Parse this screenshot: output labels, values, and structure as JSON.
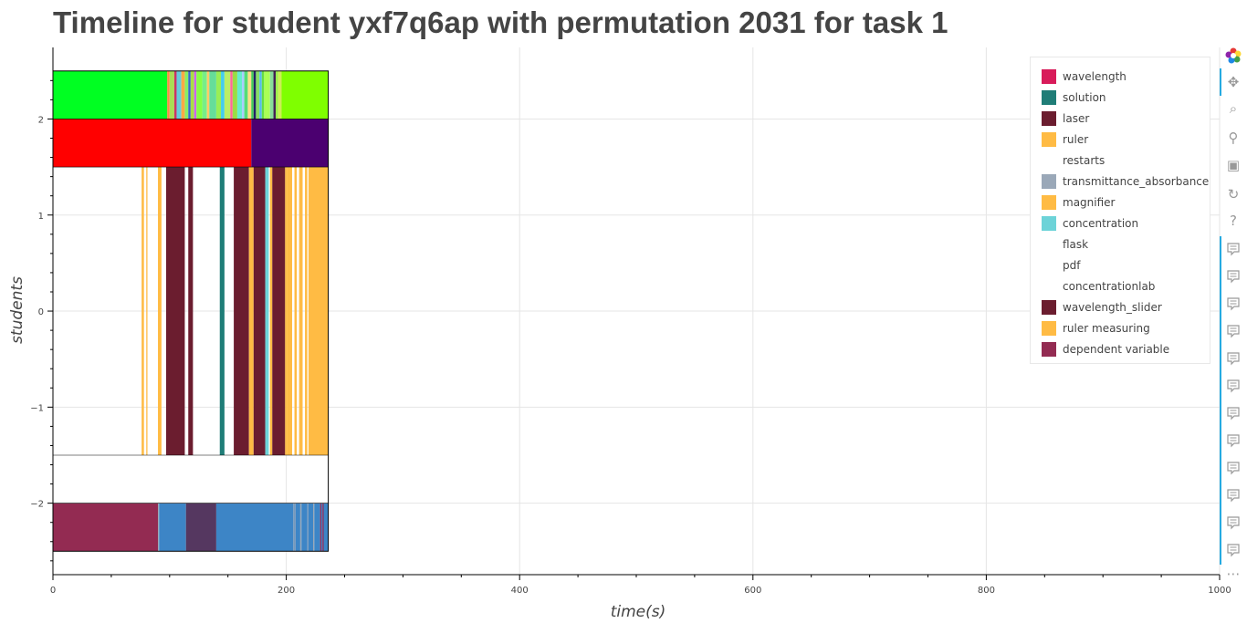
{
  "title": "Timeline for student yxf7q6ap with permutation 2031 for task 1",
  "chart_data": {
    "type": "timeline",
    "title": "Timeline for student yxf7q6ap with permutation 2031 for task 1",
    "xlabel": "time(s)",
    "ylabel": "students",
    "xlim": [
      0,
      1000
    ],
    "ylim": [
      -2.75,
      2.6
    ],
    "x_ticks": [
      0,
      200,
      400,
      600,
      800,
      1000
    ],
    "y_ticks": [
      -2,
      -1,
      0,
      1,
      2
    ],
    "y_tick_labels": [
      "−2",
      "−1",
      "0",
      "1",
      "2"
    ],
    "grid": true,
    "legend_position": "top-right",
    "legend": [
      {
        "label": "wavelength",
        "color": "#d81b5a"
      },
      {
        "label": "solution",
        "color": "#1f7d77"
      },
      {
        "label": "laser",
        "color": "#6b1d2f"
      },
      {
        "label": "ruler",
        "color": "#ffbb44"
      },
      {
        "label": "restarts",
        "color": "#ffffff"
      },
      {
        "label": "transmittance_absorbance",
        "color": "#9aa8b8"
      },
      {
        "label": "magnifier",
        "color": "#ffbb44"
      },
      {
        "label": "concentration",
        "color": "#6dd3d8"
      },
      {
        "label": "flask",
        "color": "#ffffff"
      },
      {
        "label": "pdf",
        "color": "#ffffff"
      },
      {
        "label": "concentrationlab",
        "color": "#ffffff"
      },
      {
        "label": "wavelength_slider",
        "color": "#6b1d2f"
      },
      {
        "label": "ruler measuring",
        "color": "#ffbb44"
      },
      {
        "label": "dependent variable",
        "color": "#932b52"
      }
    ],
    "rows": [
      {
        "y_range": [
          2.0,
          2.5
        ],
        "segments": [
          {
            "start": 0,
            "end": 98,
            "color": "#00ff22"
          },
          {
            "start": 98,
            "end": 100,
            "color": "#ff8844"
          },
          {
            "start": 100,
            "end": 104,
            "color": "#aadd55"
          },
          {
            "start": 104,
            "end": 106,
            "color": "#cc3366"
          },
          {
            "start": 106,
            "end": 110,
            "color": "#66ccdd"
          },
          {
            "start": 110,
            "end": 113,
            "color": "#ffaa44"
          },
          {
            "start": 113,
            "end": 116,
            "color": "#88ee66"
          },
          {
            "start": 116,
            "end": 118,
            "color": "#3366cc"
          },
          {
            "start": 118,
            "end": 121,
            "color": "#aadd44"
          },
          {
            "start": 121,
            "end": 123,
            "color": "#cc66ee"
          },
          {
            "start": 123,
            "end": 128,
            "color": "#88ff44"
          },
          {
            "start": 128,
            "end": 132,
            "color": "#77ee88"
          },
          {
            "start": 132,
            "end": 134,
            "color": "#ffcc66"
          },
          {
            "start": 134,
            "end": 140,
            "color": "#66dd99"
          },
          {
            "start": 140,
            "end": 144,
            "color": "#99ee55"
          },
          {
            "start": 144,
            "end": 147,
            "color": "#44ccee"
          },
          {
            "start": 147,
            "end": 152,
            "color": "#bbee66"
          },
          {
            "start": 152,
            "end": 154,
            "color": "#ff6699"
          },
          {
            "start": 154,
            "end": 158,
            "color": "#99dd44"
          },
          {
            "start": 158,
            "end": 162,
            "color": "#66eecc"
          },
          {
            "start": 162,
            "end": 164,
            "color": "#aaccff"
          },
          {
            "start": 164,
            "end": 167,
            "color": "#55dd77"
          },
          {
            "start": 167,
            "end": 170,
            "color": "#ffdd88"
          },
          {
            "start": 170,
            "end": 172,
            "color": "#44cc55"
          },
          {
            "start": 172,
            "end": 174,
            "color": "#222266"
          },
          {
            "start": 174,
            "end": 177,
            "color": "#88dd66"
          },
          {
            "start": 177,
            "end": 179,
            "color": "#55bbee"
          },
          {
            "start": 179,
            "end": 181,
            "color": "#66dd44"
          },
          {
            "start": 181,
            "end": 186,
            "color": "#aaff55"
          },
          {
            "start": 186,
            "end": 189,
            "color": "#88dd99"
          },
          {
            "start": 189,
            "end": 191,
            "color": "#442255"
          },
          {
            "start": 191,
            "end": 193,
            "color": "#99ee44"
          },
          {
            "start": 193,
            "end": 196,
            "color": "#ccee55"
          },
          {
            "start": 196,
            "end": 236,
            "color": "#7fff00"
          }
        ]
      },
      {
        "y_range": [
          1.5,
          2.0
        ],
        "segments": [
          {
            "start": 0,
            "end": 170,
            "color": "#ff0000"
          },
          {
            "start": 170,
            "end": 236,
            "color": "#4b0070"
          }
        ]
      },
      {
        "y_range": [
          -1.5,
          1.5
        ],
        "segments": [
          {
            "start": 76,
            "end": 78,
            "color": "#ffbb44"
          },
          {
            "start": 80,
            "end": 81,
            "color": "#ffbb44"
          },
          {
            "start": 90,
            "end": 93,
            "color": "#ffbb44"
          },
          {
            "start": 97,
            "end": 113,
            "color": "#6b1d2f"
          },
          {
            "start": 116,
            "end": 120,
            "color": "#6b1d2f"
          },
          {
            "start": 143,
            "end": 147,
            "color": "#1f7d77"
          },
          {
            "start": 155,
            "end": 168,
            "color": "#6b1d2f"
          },
          {
            "start": 168,
            "end": 172,
            "color": "#ffbb44"
          },
          {
            "start": 172,
            "end": 182,
            "color": "#6b1d2f"
          },
          {
            "start": 182,
            "end": 185,
            "color": "#6dd3d8"
          },
          {
            "start": 186,
            "end": 188,
            "color": "#ffbb44"
          },
          {
            "start": 188,
            "end": 199,
            "color": "#6b1d2f"
          },
          {
            "start": 199,
            "end": 201,
            "color": "#ffbb44"
          },
          {
            "start": 201,
            "end": 205,
            "color": "#ffbb44"
          },
          {
            "start": 207,
            "end": 209,
            "color": "#ffbb44"
          },
          {
            "start": 211,
            "end": 214,
            "color": "#ffbb44"
          },
          {
            "start": 216,
            "end": 218,
            "color": "#ffbb44"
          },
          {
            "start": 219,
            "end": 236,
            "color": "#ffbb44"
          }
        ]
      },
      {
        "y_range": [
          -2.0,
          -1.5
        ],
        "segments": []
      },
      {
        "y_range": [
          -2.5,
          -2.0
        ],
        "segments": [
          {
            "start": 0,
            "end": 90,
            "color": "#932b52"
          },
          {
            "start": 90,
            "end": 91,
            "color": "#9aa8b8"
          },
          {
            "start": 91,
            "end": 114,
            "color": "#3d85c6"
          },
          {
            "start": 114,
            "end": 140,
            "color": "#553760"
          },
          {
            "start": 140,
            "end": 206,
            "color": "#3d85c6"
          },
          {
            "start": 206,
            "end": 208,
            "color": "#7799bb"
          },
          {
            "start": 208,
            "end": 212,
            "color": "#3d85c6"
          },
          {
            "start": 212,
            "end": 213,
            "color": "#9aa8b8"
          },
          {
            "start": 213,
            "end": 218,
            "color": "#3d85c6"
          },
          {
            "start": 218,
            "end": 219,
            "color": "#7799bb"
          },
          {
            "start": 219,
            "end": 223,
            "color": "#3d85c6"
          },
          {
            "start": 223,
            "end": 224,
            "color": "#9aa8b8"
          },
          {
            "start": 224,
            "end": 229,
            "color": "#3d85c6"
          },
          {
            "start": 229,
            "end": 230,
            "color": "#882255"
          },
          {
            "start": 230,
            "end": 231,
            "color": "#3d85c6"
          },
          {
            "start": 231,
            "end": 232,
            "color": "#882255"
          },
          {
            "start": 232,
            "end": 236,
            "color": "#3d85c6"
          }
        ]
      }
    ]
  },
  "toolbar": {
    "logo_icon": "bokeh-logo-icon",
    "tools": [
      {
        "name": "pan-icon",
        "glyph": "✥"
      },
      {
        "name": "box-zoom-icon",
        "glyph": "⌕"
      },
      {
        "name": "wheel-zoom-icon",
        "glyph": "⚲"
      },
      {
        "name": "save-icon",
        "glyph": "▣"
      },
      {
        "name": "reset-icon",
        "glyph": "↻"
      },
      {
        "name": "help-icon",
        "glyph": "?"
      }
    ],
    "hover_tools": 12,
    "more_glyph": "⋯"
  }
}
